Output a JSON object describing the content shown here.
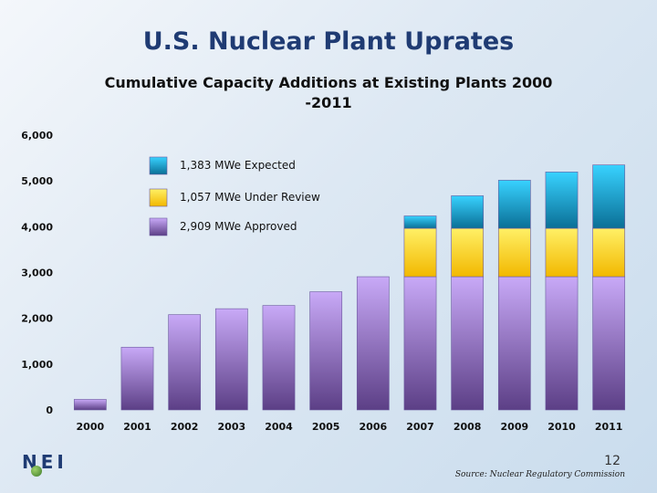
{
  "page": {
    "title": "U.S. Nuclear Plant Uprates",
    "logo_text": "NEI",
    "page_number": "12",
    "source": "Source: Nuclear Regulatory Commission"
  },
  "chart_data": {
    "type": "bar",
    "stacked": true,
    "title": "Cumulative Capacity Additions at Existing Plants 2000 -2011",
    "title_lines": [
      "Cumulative Capacity Additions at Existing Plants 2000",
      "-2011"
    ],
    "xlabel": "",
    "ylabel": "",
    "ylim": [
      0,
      6000
    ],
    "yticks": [
      0,
      1000,
      2000,
      3000,
      4000,
      5000,
      6000
    ],
    "ytick_labels": [
      "0",
      "1,000",
      "2,000",
      "3,000",
      "4,000",
      "5,000",
      "6,000"
    ],
    "categories": [
      "2000",
      "2001",
      "2002",
      "2003",
      "2004",
      "2005",
      "2006",
      "2007",
      "2008",
      "2009",
      "2010",
      "2011"
    ],
    "legend_position": "top-left",
    "series": [
      {
        "name": "2,909 MWe Approved",
        "color": "#a57fe0",
        "values": [
          230,
          1370,
          2080,
          2210,
          2280,
          2580,
          2909,
          2909,
          2909,
          2909,
          2909,
          2909
        ]
      },
      {
        "name": "1,057 MWe Under Review",
        "color": "#ffd400",
        "values": [
          0,
          0,
          0,
          0,
          0,
          0,
          0,
          1057,
          1057,
          1057,
          1057,
          1057
        ]
      },
      {
        "name": "1,383 MWe Expected",
        "color": "#0aaee0",
        "values": [
          0,
          0,
          0,
          0,
          0,
          0,
          0,
          270,
          710,
          1050,
          1230,
          1383
        ]
      }
    ],
    "legend_order": [
      "1,383 MWe Expected",
      "1,057 MWe Under Review",
      "2,909 MWe Approved"
    ]
  }
}
